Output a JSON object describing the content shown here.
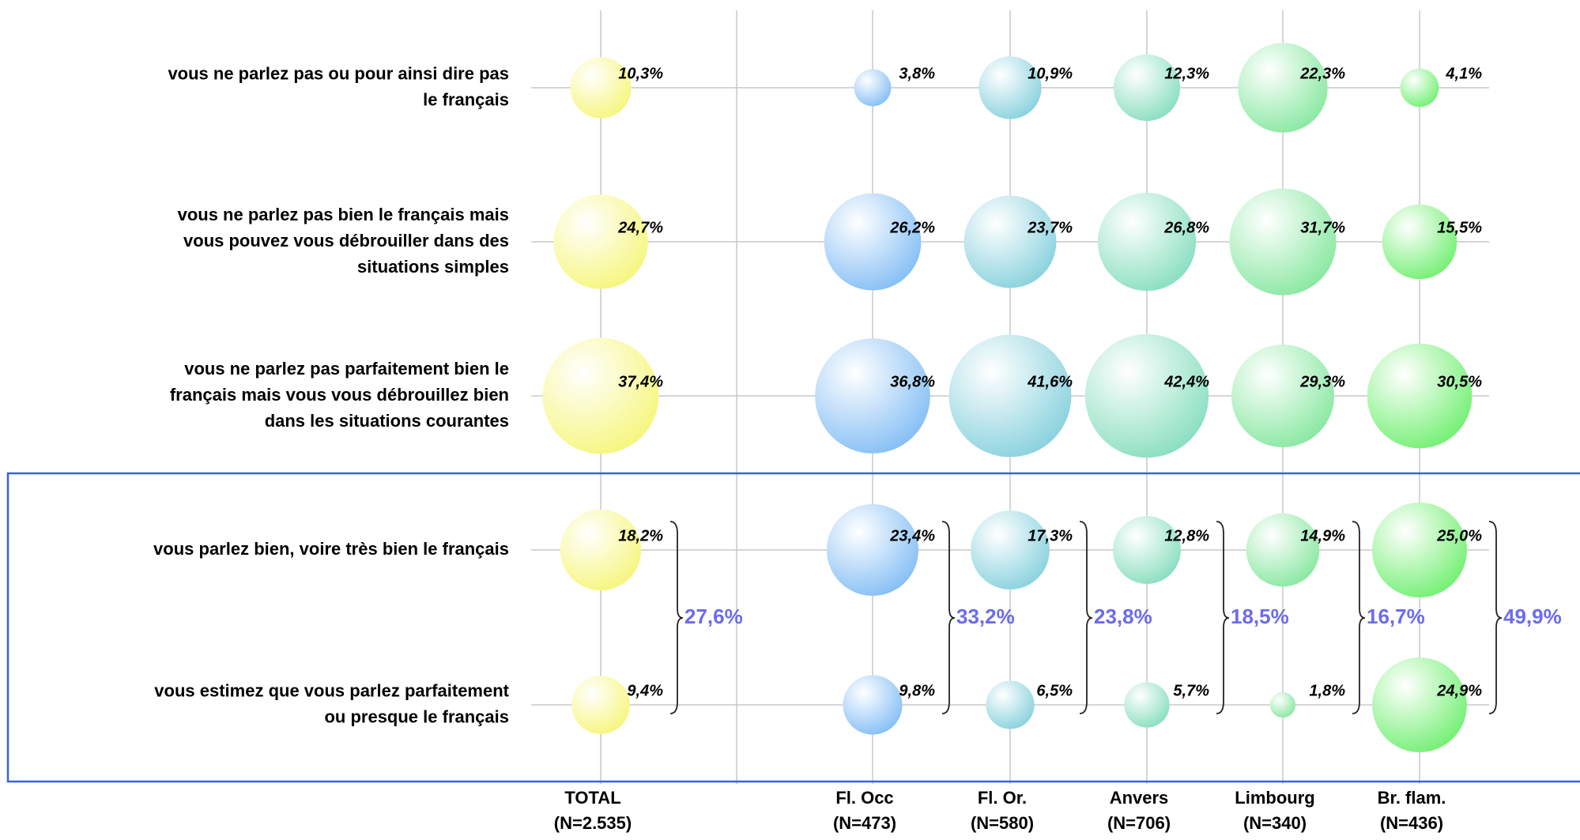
{
  "chart_data": {
    "type": "bubble",
    "rows": [
      [
        "vous ne parlez pas ou pour ainsi dire pas",
        "le français"
      ],
      [
        "vous ne parlez pas bien le français mais",
        "vous pouvez vous débrouiller dans des",
        "situations simples"
      ],
      [
        "vous ne parlez pas parfaitement bien le",
        "français mais vous vous débrouillez bien",
        "dans les situations courantes"
      ],
      [
        "vous parlez bien, voire très bien le français"
      ],
      [
        "vous estimez que vous parlez parfaitement",
        "ou presque le français"
      ]
    ],
    "series": [
      {
        "name": "TOTAL",
        "n": "(N=2.535)",
        "color": "#f6f67e",
        "values": [
          10.3,
          24.7,
          37.4,
          18.2,
          9.4
        ],
        "value_labels": [
          "10,3%",
          "24,7%",
          "37,4%",
          "18,2%",
          "9,4%"
        ],
        "sum": 27.6,
        "sum_label": "27,6%"
      },
      {
        "name": "Fl. Occ",
        "n": "(N=473)",
        "color": "#86bff5",
        "values": [
          3.8,
          26.2,
          36.8,
          23.4,
          9.8
        ],
        "value_labels": [
          "3,8%",
          "26,2%",
          "36,8%",
          "23,4%",
          "9,8%"
        ],
        "sum": 33.2,
        "sum_label": "33,2%"
      },
      {
        "name": "Fl. Or.",
        "n": "(N=580)",
        "color": "#8ad2de",
        "values": [
          10.9,
          23.7,
          41.6,
          17.3,
          6.5
        ],
        "value_labels": [
          "10,9%",
          "23,7%",
          "41,6%",
          "17,3%",
          "6,5%"
        ],
        "sum": 23.8,
        "sum_label": "23,8%"
      },
      {
        "name": "Anvers",
        "n": "(N=706)",
        "color": "#8adfc0",
        "values": [
          12.3,
          26.8,
          42.4,
          12.8,
          5.7
        ],
        "value_labels": [
          "12,3%",
          "26,8%",
          "42,4%",
          "12,8%",
          "5,7%"
        ],
        "sum": 18.5,
        "sum_label": "18,5%"
      },
      {
        "name": "Limbourg",
        "n": "(N=340)",
        "color": "#8ae8a2",
        "values": [
          22.3,
          31.7,
          29.3,
          14.9,
          1.8
        ],
        "value_labels": [
          "22,3%",
          "31,7%",
          "29,3%",
          "14,9%",
          "1,8%"
        ],
        "sum": 16.7,
        "sum_label": "16,7%"
      },
      {
        "name": "Br. flam.",
        "n": "(N=436)",
        "color": "#74f074",
        "values": [
          4.1,
          15.5,
          30.5,
          25.0,
          24.9
        ],
        "value_labels": [
          "4,1%",
          "15,5%",
          "30,5%",
          "25,0%",
          "24,9%"
        ],
        "sum": 49.9,
        "sum_label": "49,9%"
      }
    ]
  }
}
